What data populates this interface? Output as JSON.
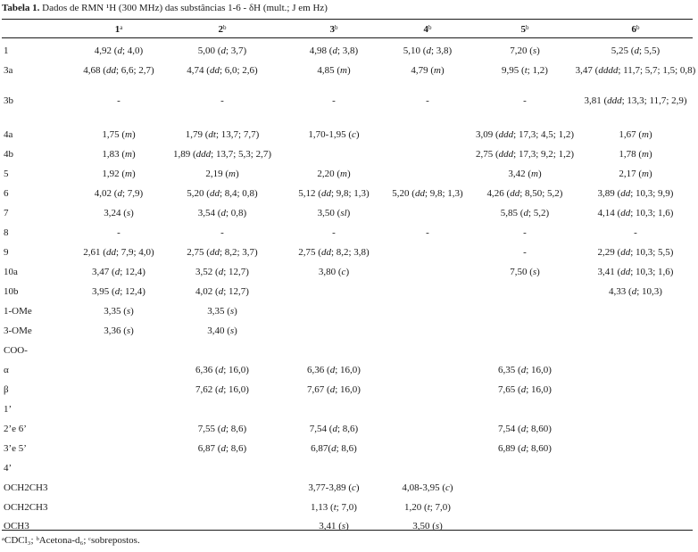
{
  "caption": {
    "lead": "Tabela 1.",
    "text": "Dados de RMN ¹H (300 MHz) das substâncias 1-6 - δH (mult.; J em Hz)"
  },
  "columns": [
    {
      "num": "1",
      "sup": "a"
    },
    {
      "num": "2",
      "sup": "b"
    },
    {
      "num": "3",
      "sup": "b"
    },
    {
      "num": "4",
      "sup": "b"
    },
    {
      "num": "5",
      "sup": "b"
    },
    {
      "num": "6",
      "sup": "b"
    }
  ],
  "rows": [
    {
      "label": "1",
      "cells": [
        "4,92 (d; 4,0)",
        "5,00 (d; 3,7)",
        "4,98 (d; 3,8)",
        "5,10 (d; 3,8)",
        "7,20 (s)",
        "5,25 (d; 5,5)"
      ]
    },
    {
      "label": "3a",
      "cells": [
        "4,68 (dd; 6,6; 2,7)",
        "4,74 (dd; 6,0; 2,6)",
        "4,85 (m)",
        "4,79 (m)",
        "9,95 (t; 1,2)",
        "3,47 (dddd; 11,7; 5,7; 1,5; 0,8)"
      ]
    },
    {
      "label": "3b",
      "cells": [
        "-",
        "-",
        "-",
        "-",
        "-",
        "3,81 (ddd; 13,3; 11,7; 2,9)"
      ]
    },
    {
      "label": "4a",
      "cells": [
        "1,75 (m)",
        "1,79 (dt; 13,7; 7,7)",
        "1,70-1,95 (c)",
        "",
        "3,09 (ddd; 17,3; 4,5; 1,2)",
        "1,67 (m)"
      ]
    },
    {
      "label": "4b",
      "cells": [
        "1,83 (m)",
        "1,89 (ddd; 13,7; 5,3; 2,7)",
        "",
        "",
        "2,75 (ddd; 17,3; 9,2; 1,2)",
        "1,78 (m)"
      ]
    },
    {
      "label": "5",
      "cells": [
        "1,92 (m)",
        "2,19 (m)",
        "2,20 (m)",
        "",
        "3,42 (m)",
        "2,17 (m)"
      ]
    },
    {
      "label": "6",
      "cells": [
        "4,02 (d; 7,9)",
        "5,20 (dd; 8,4; 0,8)",
        "5,12 (dd; 9,8; 1,3)",
        "5,20 (dd; 9,8; 1,3)",
        "4,26 (dd; 8,50; 5,2)",
        "3,89 (dd; 10,3; 9,9)"
      ]
    },
    {
      "label": "7",
      "cells": [
        "3,24 (s)",
        "3,54 (d; 0,8)",
        "3,50 (sl)",
        "",
        "5,85 (d; 5,2)",
        "4,14 (dd; 10,3; 1,6)"
      ]
    },
    {
      "label": "8",
      "cells": [
        "-",
        "-",
        "-",
        "-",
        "-",
        "-"
      ]
    },
    {
      "label": "9",
      "cells": [
        "2,61 (dd; 7,9; 4,0)",
        "2,75 (dd; 8,2; 3,7)",
        "2,75 (dd; 8,2; 3,8)",
        "",
        "-",
        "2,29 (dd; 10,3; 5,5)"
      ]
    },
    {
      "label": "10a",
      "cells": [
        "3,47 (d; 12,4)",
        "3,52 (d; 12,7)",
        "3,80 (c)",
        "",
        "7,50 (s)",
        "3,41 (dd; 10,3; 1,6)"
      ]
    },
    {
      "label": "10b",
      "cells": [
        "3,95 (d; 12,4)",
        "4,02 (d; 12,7)",
        "",
        "",
        "",
        "4,33 (d; 10,3)"
      ]
    },
    {
      "label": "1-OMe",
      "cells": [
        "3,35 (s)",
        "3,35 (s)",
        "",
        "",
        "",
        ""
      ]
    },
    {
      "label": "3-OMe",
      "cells": [
        "3,36 (s)",
        "3,40 (s)",
        "",
        "",
        "",
        ""
      ]
    },
    {
      "label": "COO-",
      "cells": [
        "",
        "",
        "",
        "",
        "",
        ""
      ]
    },
    {
      "label": "α",
      "cells": [
        "",
        "6,36 (d; 16,0)",
        "6,36 (d; 16,0)",
        "",
        "6,35 (d; 16,0)",
        ""
      ]
    },
    {
      "label": "β",
      "cells": [
        "",
        "7,62 (d; 16,0)",
        "7,67 (d; 16,0)",
        "",
        "7,65 (d; 16,0)",
        ""
      ]
    },
    {
      "label": "1’",
      "cells": [
        "",
        "",
        "",
        "",
        "",
        ""
      ]
    },
    {
      "label": "2’e 6’",
      "cells": [
        "",
        "7,55 (d; 8,6)",
        "7,54 (d; 8,6)",
        "",
        "7,54 (d; 8,60)",
        ""
      ]
    },
    {
      "label": "3’e 5’",
      "cells": [
        "",
        "6,87 (d; 8,6)",
        "6,87(d; 8,6)",
        "",
        "6,89 (d; 8,60)",
        ""
      ]
    },
    {
      "label": "4’",
      "cells": [
        "",
        "",
        "",
        "",
        "",
        ""
      ]
    },
    {
      "label": "OCH2CH3",
      "cells": [
        "",
        "",
        "3,77-3,89 (c)",
        "4,08-3,95 (c)",
        "",
        ""
      ]
    },
    {
      "label": "OCH2CH3",
      "cells": [
        "",
        "",
        "1,13 (t; 7,0)",
        "1,20 (t; 7,0)",
        "",
        ""
      ]
    },
    {
      "label": "OCH3",
      "cells": [
        "",
        "",
        "3,41 (s)",
        "3,50 (s)",
        "",
        ""
      ]
    }
  ],
  "footnote": "ᵃCDCl₃; ᵇAcetona-d₆; ᶜsobrepostos."
}
